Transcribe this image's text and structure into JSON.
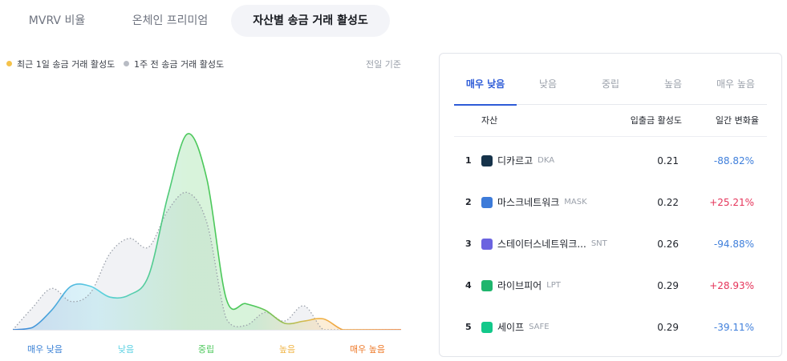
{
  "tabs": [
    {
      "label": "MVRV 비율",
      "active": false
    },
    {
      "label": "온체인 프리미엄",
      "active": false
    },
    {
      "label": "자산별 송금 거래 활성도",
      "active": true
    }
  ],
  "legend": {
    "current": "최근 1일 송금 거래 활성도",
    "prev": "1주 전 송금 거래 활성도",
    "current_color": "#f5c24a",
    "prev_color": "#b8bcc4"
  },
  "basis": "전일 기준",
  "chart_data": {
    "type": "area",
    "title": "",
    "xlabel": "",
    "ylabel": "",
    "categories": [
      "매우 낮음",
      "낮음",
      "중립",
      "높음",
      "매우 높음"
    ],
    "category_colors": [
      "#3b82d6",
      "#5bd1e3",
      "#4cc85b",
      "#f0b64a",
      "#ee7a2a"
    ],
    "x": [
      0,
      0.5,
      1,
      1.5,
      2,
      2.5,
      3,
      3.5,
      4,
      4.5,
      5,
      5.5,
      6,
      6.5,
      7,
      7.5,
      8,
      8.5,
      9,
      9.5,
      10
    ],
    "xlim": [
      0,
      10
    ],
    "ylim": [
      0,
      1
    ],
    "series": [
      {
        "name": "최근 1일 송금 거래 활성도",
        "style": "solid",
        "values": [
          0,
          0.01,
          0.09,
          0.2,
          0.2,
          0.15,
          0.16,
          0.25,
          0.62,
          0.9,
          0.69,
          0.14,
          0.12,
          0.09,
          0.03,
          0.04,
          0.05,
          0.0,
          0.0,
          0.0,
          0.0
        ]
      },
      {
        "name": "1주 전 송금 거래 활성도",
        "style": "dotted",
        "values": [
          0.0,
          0.1,
          0.19,
          0.13,
          0.17,
          0.35,
          0.42,
          0.38,
          0.55,
          0.63,
          0.49,
          0.05,
          0.02,
          0.08,
          0.04,
          0.11,
          0.0,
          0.0,
          0.0,
          0.0,
          0.0
        ]
      }
    ]
  },
  "panel": {
    "tabs": [
      "매우 낮음",
      "낮음",
      "중립",
      "높음",
      "매우 높음"
    ],
    "active_tab": 0,
    "headers": {
      "asset": "자산",
      "activity": "입출금 활성도",
      "change": "일간 변화율"
    },
    "rows": [
      {
        "rank": "1",
        "name": "디카르고",
        "symbol": "DKA",
        "activity": "0.21",
        "change": "-88.82%",
        "sign": "neg",
        "icon": "dkargo-icon",
        "icon_color": "#16334a"
      },
      {
        "rank": "2",
        "name": "마스크네트워크",
        "symbol": "MASK",
        "activity": "0.22",
        "change": "+25.21%",
        "sign": "pos",
        "icon": "mask-network-icon",
        "icon_color": "#3d7bd9"
      },
      {
        "rank": "3",
        "name": "스테이터스네트워크...",
        "symbol": "SNT",
        "activity": "0.26",
        "change": "-94.88%",
        "sign": "neg",
        "icon": "status-network-icon",
        "icon_color": "#6b63e0"
      },
      {
        "rank": "4",
        "name": "라이브피어",
        "symbol": "LPT",
        "activity": "0.29",
        "change": "+28.93%",
        "sign": "pos",
        "icon": "livepeer-icon",
        "icon_color": "#1fb56d"
      },
      {
        "rank": "5",
        "name": "세이프",
        "symbol": "SAFE",
        "activity": "0.29",
        "change": "-39.11%",
        "sign": "neg",
        "icon": "safe-icon",
        "icon_color": "#12c88a"
      }
    ]
  }
}
